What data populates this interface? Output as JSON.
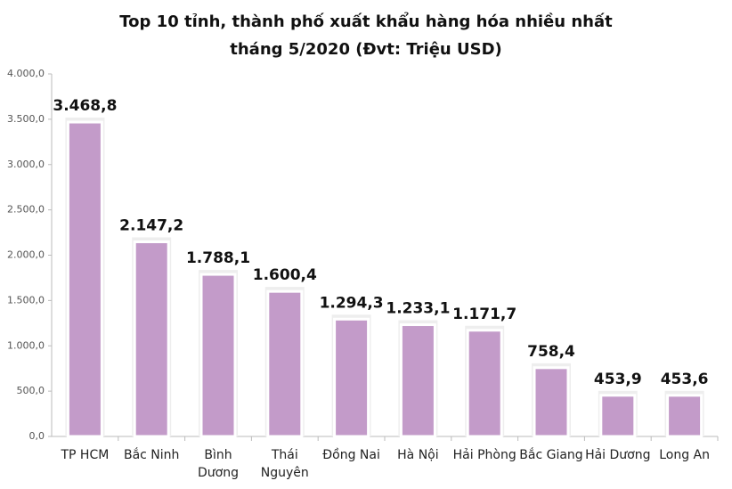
{
  "chart_data": {
    "type": "bar",
    "title": [
      "Top 10 tỉnh, thành phố xuất khẩu hàng hóa nhiều nhất",
      "tháng 5/2020 (Đvt: Triệu USD)"
    ],
    "categories": [
      "TP HCM",
      "Bắc Ninh",
      "Bình Dương",
      "Thái Nguyên",
      "Đồng Nai",
      "Hà Nội",
      "Hải Phòng",
      "Bắc Giang",
      "Hải Dương",
      "Long An"
    ],
    "values": [
      3468.8,
      2147.2,
      1788.1,
      1600.4,
      1294.3,
      1233.1,
      1171.7,
      758.4,
      453.9,
      453.6
    ],
    "value_labels": [
      "3.468,8",
      "2.147,2",
      "1.788,1",
      "1.600,4",
      "1.294,3",
      "1.233,1",
      "1.171,7",
      "758,4",
      "453,9",
      "453,6"
    ],
    "color": "#c39bc9",
    "ylim": [
      0,
      4000
    ],
    "yticks": [
      {
        "value": 0,
        "label": "0,0"
      },
      {
        "value": 500,
        "label": "500,0"
      },
      {
        "value": 1000,
        "label": "1.000,0"
      },
      {
        "value": 1500,
        "label": "1.500,0"
      },
      {
        "value": 2000,
        "label": "2.000,0"
      },
      {
        "value": 2500,
        "label": "2.500,0"
      },
      {
        "value": 3000,
        "label": "3.000,0"
      },
      {
        "value": 3500,
        "label": "3.500,0"
      },
      {
        "value": 4000,
        "label": "4.000,0"
      }
    ],
    "grid": false
  }
}
